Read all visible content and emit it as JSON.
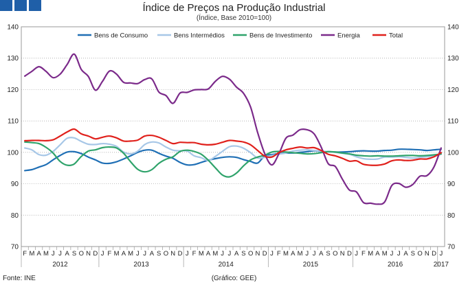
{
  "header": {
    "title": "Índice de Preços na Produção Industrial",
    "subtitle": "(Índice, Base 2010=100)"
  },
  "footer": {
    "source": "Fonte: INE",
    "credit": "(Gráfico: GEE)"
  },
  "chart_data": {
    "type": "line",
    "title": "Índice de Preços na Produção Industrial",
    "subtitle": "(Índice, Base 2010=100)",
    "ylim": [
      70,
      140
    ],
    "yticks": [
      70,
      80,
      90,
      100,
      110,
      120,
      130,
      140
    ],
    "grid": true,
    "legend_position": "top",
    "month_labels": [
      "F",
      "M",
      "A",
      "M",
      "J",
      "J",
      "A",
      "S",
      "O",
      "N",
      "D",
      "J",
      "F",
      "M",
      "A",
      "M",
      "J",
      "J",
      "A",
      "S",
      "O",
      "N",
      "D",
      "J",
      "F",
      "M",
      "A",
      "M",
      "J",
      "J",
      "A",
      "S",
      "O",
      "N",
      "D",
      "J",
      "F",
      "M",
      "A",
      "M",
      "J",
      "J",
      "A",
      "S",
      "O",
      "N",
      "D",
      "J",
      "F",
      "M",
      "A",
      "M",
      "J",
      "J",
      "A",
      "S",
      "O",
      "N",
      "D",
      "J"
    ],
    "year_labels": [
      {
        "label": "2012",
        "start": 0,
        "end": 10
      },
      {
        "label": "2013",
        "start": 11,
        "end": 22
      },
      {
        "label": "2014",
        "start": 23,
        "end": 34
      },
      {
        "label": "2015",
        "start": 35,
        "end": 46
      },
      {
        "label": "2016",
        "start": 47,
        "end": 58
      },
      {
        "label": "2017",
        "start": 59,
        "end": 59
      }
    ],
    "series": [
      {
        "name": "Bens de Consumo",
        "color": "#1f6fb5",
        "values": [
          94.2,
          94.5,
          95.3,
          96.1,
          97.6,
          99,
          100.1,
          100.2,
          99.6,
          98.5,
          97.6,
          96.6,
          96.5,
          97,
          97.9,
          98.9,
          100,
          100.7,
          100.7,
          99.7,
          98.8,
          98.1,
          96.8,
          96,
          96.1,
          96.8,
          97.5,
          98,
          98.4,
          98.6,
          98.4,
          97.7,
          97.1,
          96.6,
          98.9,
          99.3,
          99.6,
          99.8,
          99.8,
          100,
          100.2,
          100.5,
          100.3,
          100.2,
          100.1,
          100.1,
          100.2,
          100.4,
          100.5,
          100.4,
          100.4,
          100.6,
          100.7,
          101,
          101,
          100.9,
          100.8,
          100.6,
          100.8,
          101
        ]
      },
      {
        "name": "Bens Intermédios",
        "color": "#a7c7e7",
        "values": [
          101.4,
          100.8,
          99.3,
          99.1,
          100.3,
          102.4,
          104.5,
          104.6,
          103.5,
          102.6,
          102.5,
          102.8,
          102.6,
          101.9,
          100.1,
          99.5,
          100.4,
          102.5,
          103.3,
          103,
          101.7,
          100.7,
          100.5,
          100.4,
          98.9,
          98.3,
          97.4,
          98.7,
          100.3,
          101.8,
          102,
          101.3,
          99.9,
          98.2,
          98.4,
          99,
          99.4,
          99.8,
          100.4,
          100.7,
          100.8,
          100.6,
          100.4,
          100.2,
          100,
          99.7,
          99.4,
          98.6,
          98,
          97.8,
          97.9,
          98.5,
          98.5,
          98.6,
          98.4,
          98.2,
          98.4,
          98.6,
          98.8,
          99.4
        ]
      },
      {
        "name": "Bens de Investimento",
        "color": "#2fa36b",
        "values": [
          103.3,
          103.1,
          102.8,
          101.6,
          99.8,
          97.1,
          95.9,
          96.3,
          98.7,
          100.4,
          100.8,
          101.5,
          101.7,
          101.4,
          99.7,
          97,
          94.6,
          93.8,
          94.5,
          96.5,
          97.8,
          98.6,
          100.3,
          100.7,
          100.3,
          99.4,
          97.5,
          95.1,
          92.8,
          92.2,
          93.4,
          95.7,
          97.6,
          98.5,
          99.1,
          100.1,
          100.3,
          100.1,
          99.9,
          99.7,
          99.5,
          99.6,
          99.9,
          100.2,
          100.1,
          99.8,
          99.5,
          99.1,
          98.9,
          98.8,
          98.9,
          98.8,
          98.8,
          98.9,
          99,
          99,
          98.9,
          99,
          99.2,
          99.5
        ]
      },
      {
        "name": "Energia",
        "color": "#7b2a8a",
        "values": [
          124.3,
          125.8,
          127.3,
          125.8,
          123.8,
          124.9,
          128,
          131.3,
          126.4,
          124.2,
          119.8,
          122.6,
          125.9,
          124.9,
          122.3,
          122.1,
          121.9,
          123.2,
          123.4,
          119.2,
          118.1,
          115.6,
          118.9,
          119.1,
          119.9,
          120,
          120.2,
          122.6,
          124.2,
          123.3,
          120.8,
          118.8,
          114.4,
          106.3,
          99.6,
          96,
          99.5,
          104.5,
          105.5,
          107.2,
          107.2,
          105.9,
          101.7,
          96.4,
          95.5,
          91.5,
          88,
          87.4,
          84,
          83.8,
          83.5,
          84.2,
          89.4,
          90.1,
          88.9,
          89.8,
          92.4,
          92.6,
          95.4,
          101.4
        ]
      },
      {
        "name": "Total",
        "color": "#e0201b",
        "values": [
          103.7,
          103.8,
          103.8,
          103.7,
          104,
          105.2,
          106.5,
          107.4,
          105.9,
          105.2,
          104.3,
          104.8,
          105.2,
          104.6,
          103.6,
          103.6,
          103.9,
          105.2,
          105.4,
          104.8,
          103.8,
          102.8,
          103.2,
          103.1,
          103.1,
          102.6,
          102.4,
          102.6,
          103.2,
          103.8,
          103.6,
          103.3,
          102.4,
          100.6,
          98.8,
          98.5,
          99.9,
          100.8,
          101.3,
          101.7,
          101.4,
          101.5,
          100.6,
          99.4,
          98.9,
          98.1,
          97.2,
          97.3,
          96.2,
          95.9,
          95.9,
          96.3,
          97.3,
          97.6,
          97.4,
          97.5,
          97.9,
          97.9,
          98.6,
          99.9
        ]
      }
    ]
  }
}
